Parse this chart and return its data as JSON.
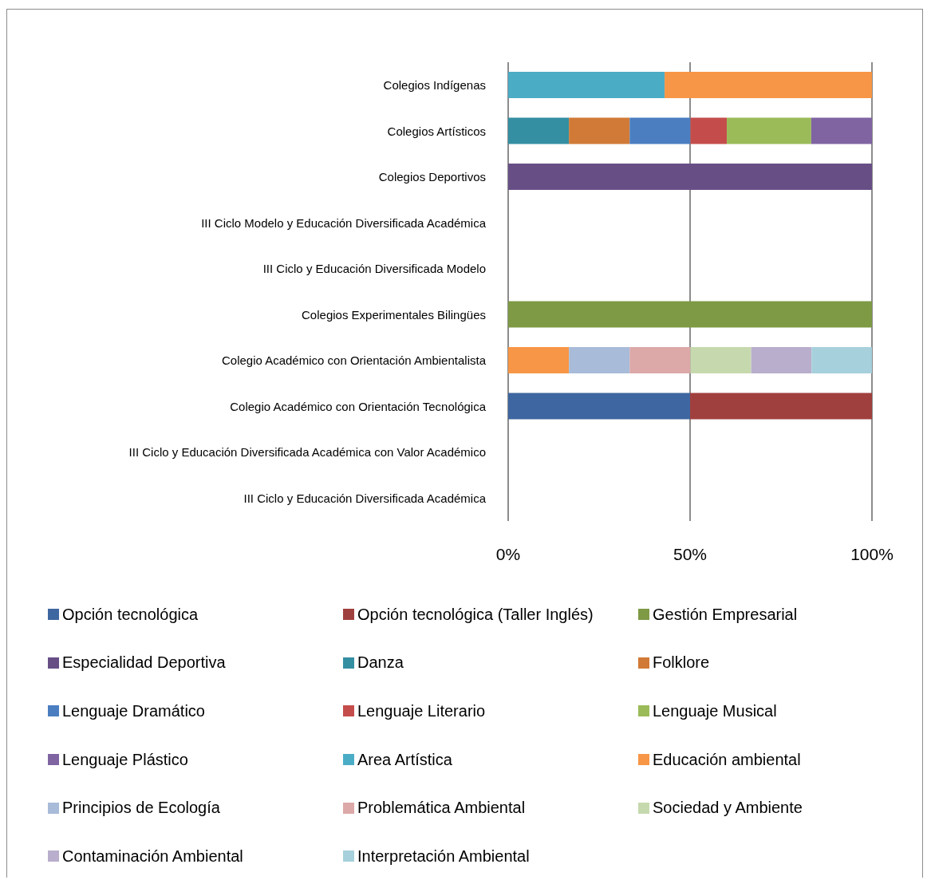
{
  "chart_data": {
    "type": "bar",
    "orientation": "horizontal",
    "stacked": true,
    "categories": [
      "Colegios Indígenas",
      "Colegios Artísticos",
      "Colegios Deportivos",
      "III Ciclo Modelo y Educación Diversificada Académica",
      "III Ciclo y Educación Diversificada Modelo",
      "Colegios Experimentales Bilingües",
      "Colegio Académico con Orientación Ambientalista",
      "Colegio Académico con Orientación Tecnológica",
      "III Ciclo y Educación Diversificada Académica con Valor Académico",
      "III Ciclo y Educación Diversificada Académica"
    ],
    "series": [
      {
        "name": "Opción tecnológica",
        "color": "#3e66a0",
        "values": [
          null,
          null,
          null,
          null,
          null,
          null,
          null,
          50,
          null,
          null
        ]
      },
      {
        "name": "Opción tecnológica (Taller Inglés)",
        "color": "#a0403e",
        "values": [
          null,
          null,
          null,
          null,
          null,
          null,
          null,
          50,
          null,
          null
        ]
      },
      {
        "name": "Gestión Empresarial",
        "color": "#7e9a45",
        "values": [
          null,
          null,
          null,
          null,
          null,
          100,
          null,
          null,
          null,
          null
        ]
      },
      {
        "name": "Especialidad Deportiva",
        "color": "#674f86",
        "values": [
          null,
          null,
          100,
          null,
          null,
          null,
          null,
          null,
          null,
          null
        ]
      },
      {
        "name": "Danza",
        "color": "#358fa2",
        "values": [
          null,
          16.7,
          null,
          null,
          null,
          null,
          null,
          null,
          null,
          null
        ]
      },
      {
        "name": "Folklore",
        "color": "#d17a37",
        "values": [
          null,
          16.7,
          null,
          null,
          null,
          null,
          null,
          null,
          null,
          null
        ]
      },
      {
        "name": "Lenguaje Dramático",
        "color": "#4a7ec0",
        "values": [
          null,
          16.7,
          null,
          null,
          null,
          null,
          null,
          null,
          null,
          null
        ]
      },
      {
        "name": "Lenguaje Literario",
        "color": "#c44d4b",
        "values": [
          null,
          10,
          null,
          null,
          null,
          null,
          null,
          null,
          null,
          null
        ]
      },
      {
        "name": "Lenguaje Musical",
        "color": "#9bbb59",
        "values": [
          null,
          23.2,
          null,
          null,
          null,
          null,
          null,
          null,
          null,
          null
        ]
      },
      {
        "name": "Lenguaje Plástico",
        "color": "#8064a2",
        "values": [
          null,
          16.7,
          null,
          null,
          null,
          null,
          null,
          null,
          null,
          null
        ]
      },
      {
        "name": "Area Artística",
        "color": "#4bacc6",
        "values": [
          43,
          null,
          null,
          null,
          null,
          null,
          null,
          null,
          null,
          null
        ]
      },
      {
        "name": "Educación ambiental",
        "color": "#f79646",
        "values": [
          57,
          null,
          null,
          null,
          null,
          null,
          16.7,
          null,
          null,
          null
        ]
      },
      {
        "name": "Principios de Ecología",
        "color": "#a8bbd9",
        "values": [
          null,
          null,
          null,
          null,
          null,
          null,
          16.7,
          null,
          null,
          null
        ]
      },
      {
        "name": "Problemática Ambiental",
        "color": "#dca8a8",
        "values": [
          null,
          null,
          null,
          null,
          null,
          null,
          16.7,
          null,
          null,
          null
        ]
      },
      {
        "name": "Sociedad y Ambiente",
        "color": "#c6d9ae",
        "values": [
          null,
          null,
          null,
          null,
          null,
          null,
          16.7,
          null,
          null,
          null
        ]
      },
      {
        "name": "Contaminación Ambiental",
        "color": "#b9aecc",
        "values": [
          null,
          null,
          null,
          null,
          null,
          null,
          16.6,
          null,
          null,
          null
        ]
      },
      {
        "name": "Interpretación Ambiental",
        "color": "#a6d0dc",
        "values": [
          null,
          null,
          null,
          null,
          null,
          null,
          16.6,
          null,
          null,
          null
        ]
      }
    ],
    "xlim": [
      0,
      100
    ],
    "xticks": [
      {
        "value": 0,
        "label": "0%"
      },
      {
        "value": 50,
        "label": "50%"
      },
      {
        "value": 100,
        "label": "100%"
      }
    ],
    "grid": "x",
    "legend": "bottom"
  }
}
